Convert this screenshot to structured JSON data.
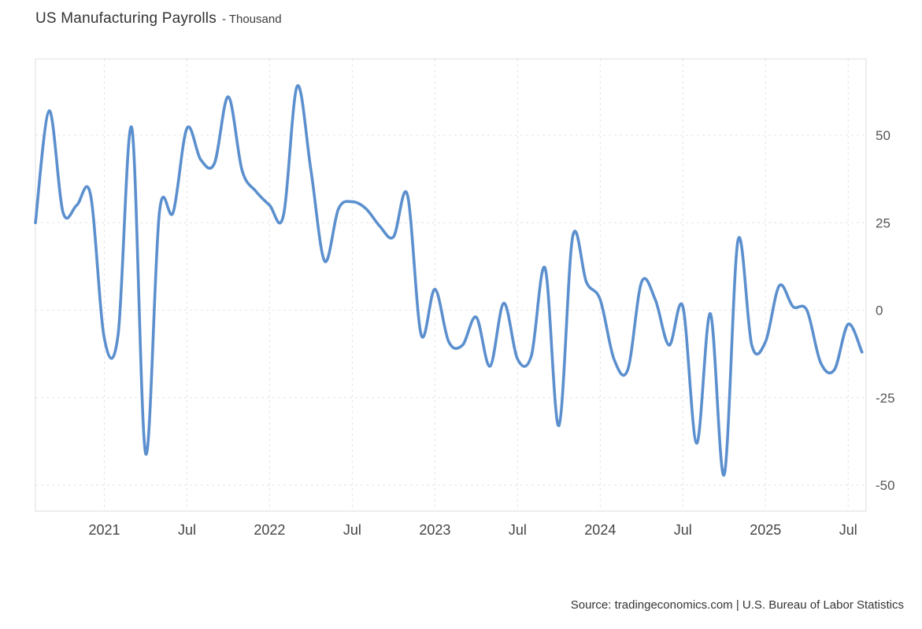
{
  "header": {
    "title": "US Manufacturing Payrolls",
    "subtitle": "- Thousand"
  },
  "footer": {
    "source": "Source: tradingeconomics.com | U.S. Bureau of Labor Statistics"
  },
  "colors": {
    "line": "#5b8fce",
    "grid": "#e4e4e4",
    "plot_border": "#dddddd",
    "title_text": "#333333",
    "axis_text": "#555555"
  },
  "chart_data": {
    "type": "line",
    "title": "US Manufacturing Payrolls",
    "unit": "Thousand",
    "legend_position": "none",
    "grid": "dashed",
    "x": [
      "2020-08",
      "2020-09",
      "2020-10",
      "2020-11",
      "2020-12",
      "2021-01",
      "2021-02",
      "2021-03",
      "2021-04",
      "2021-05",
      "2021-06",
      "2021-07",
      "2021-08",
      "2021-09",
      "2021-10",
      "2021-11",
      "2021-12",
      "2022-01",
      "2022-02",
      "2022-03",
      "2022-04",
      "2022-05",
      "2022-06",
      "2022-07",
      "2022-08",
      "2022-09",
      "2022-10",
      "2022-11",
      "2022-12",
      "2023-01",
      "2023-02",
      "2023-03",
      "2023-04",
      "2023-05",
      "2023-06",
      "2023-07",
      "2023-08",
      "2023-09",
      "2023-10",
      "2023-11",
      "2023-12",
      "2024-01",
      "2024-02",
      "2024-03",
      "2024-04",
      "2024-05",
      "2024-06",
      "2024-07",
      "2024-08",
      "2024-09",
      "2024-10",
      "2024-11",
      "2024-12",
      "2025-01",
      "2025-02",
      "2025-03",
      "2025-04",
      "2025-05",
      "2025-06",
      "2025-07",
      "2025-08"
    ],
    "values": [
      25,
      57,
      28,
      30,
      33,
      -8,
      -7,
      52,
      -41,
      28,
      28,
      52,
      43,
      42,
      61,
      40,
      34,
      30,
      27,
      64,
      40,
      14,
      29,
      31,
      29,
      24,
      21,
      33,
      -7,
      6,
      -9,
      -10,
      -2,
      -16,
      2,
      -14,
      -13,
      12,
      -33,
      21,
      8,
      3,
      -14,
      -17,
      8,
      3,
      -10,
      1,
      -38,
      -1,
      -47,
      20,
      -10,
      -9,
      7,
      1,
      0,
      -15,
      -17,
      -4,
      -12
    ],
    "x_ticks": [
      {
        "index": 5,
        "label": "2021"
      },
      {
        "index": 11,
        "label": "Jul"
      },
      {
        "index": 17,
        "label": "2022"
      },
      {
        "index": 23,
        "label": "Jul"
      },
      {
        "index": 29,
        "label": "2023"
      },
      {
        "index": 35,
        "label": "Jul"
      },
      {
        "index": 41,
        "label": "2024"
      },
      {
        "index": 47,
        "label": "Jul"
      },
      {
        "index": 53,
        "label": "2025"
      },
      {
        "index": 59,
        "label": "Jul"
      }
    ],
    "y_ticks": [
      {
        "value": 50,
        "label": "50"
      },
      {
        "value": 25,
        "label": "25"
      },
      {
        "value": 0,
        "label": "0"
      },
      {
        "value": -25,
        "label": "-25"
      },
      {
        "value": -50,
        "label": "-50"
      }
    ],
    "ylim": [
      -57.4,
      71.8
    ]
  }
}
